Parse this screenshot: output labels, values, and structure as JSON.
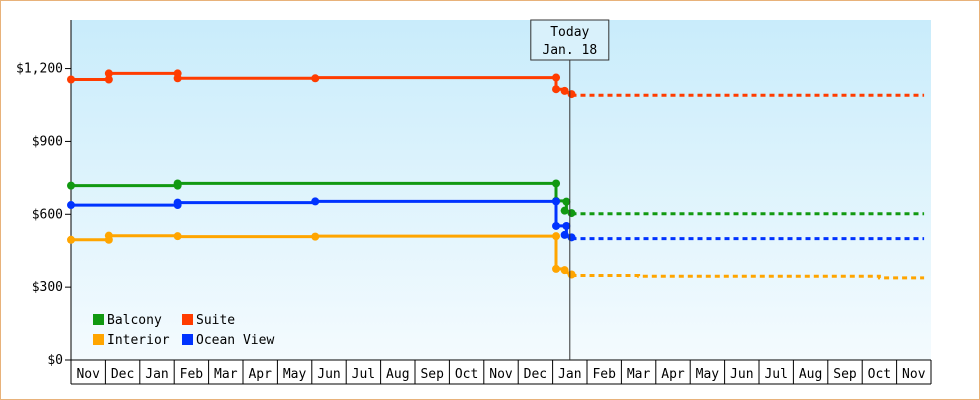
{
  "chart_data": {
    "type": "line",
    "title": "",
    "xlabel": "",
    "ylabel": "",
    "ylim": [
      0,
      1400
    ],
    "y_ticks": [
      {
        "value": 0,
        "label": "$0"
      },
      {
        "value": 300,
        "label": "$300"
      },
      {
        "value": 600,
        "label": "$600"
      },
      {
        "value": 900,
        "label": "$900"
      },
      {
        "value": 1200,
        "label": "$1,200"
      }
    ],
    "x_labels": [
      "Nov",
      "Dec",
      "Jan",
      "Feb",
      "Mar",
      "Apr",
      "May",
      "Jun",
      "Jul",
      "Aug",
      "Sep",
      "Oct",
      "Nov",
      "Dec",
      "Jan",
      "Feb",
      "Mar",
      "Apr",
      "May",
      "Jun",
      "Jul",
      "Aug",
      "Sep",
      "Oct",
      "Nov"
    ],
    "today": {
      "line1": "Today",
      "line2": "Jan. 18",
      "month_position": 14.5
    },
    "grid": false,
    "legend_position": "bottom-left",
    "series": [
      {
        "name": "Suite",
        "color": "#ff3c00",
        "points": [
          [
            0,
            1155
          ],
          [
            1.1,
            1155
          ],
          [
            1.1,
            1180
          ],
          [
            3.1,
            1180
          ],
          [
            3.1,
            1160
          ],
          [
            7.1,
            1160
          ],
          [
            7.1,
            1163
          ],
          [
            14.1,
            1163
          ],
          [
            14.1,
            1115
          ],
          [
            14.4,
            1115
          ],
          [
            14.4,
            1105
          ],
          [
            14.55,
            1095
          ]
        ],
        "markers": [
          [
            0,
            1155
          ],
          [
            1.1,
            1155
          ],
          [
            1.1,
            1180
          ],
          [
            3.1,
            1180
          ],
          [
            3.1,
            1160
          ],
          [
            7.1,
            1160
          ],
          [
            14.1,
            1163
          ],
          [
            14.1,
            1115
          ],
          [
            14.35,
            1108
          ],
          [
            14.55,
            1095
          ]
        ],
        "forecast": [
          [
            14.55,
            1090
          ],
          [
            24.8,
            1090
          ]
        ]
      },
      {
        "name": "Balcony",
        "color": "#119911",
        "points": [
          [
            0,
            718
          ],
          [
            3.1,
            718
          ],
          [
            3.1,
            727
          ],
          [
            14.1,
            727
          ],
          [
            14.1,
            655
          ],
          [
            14.4,
            655
          ],
          [
            14.4,
            615
          ],
          [
            14.55,
            605
          ]
        ],
        "markers": [
          [
            0,
            718
          ],
          [
            3.1,
            718
          ],
          [
            3.1,
            727
          ],
          [
            14.1,
            727
          ],
          [
            14.1,
            655
          ],
          [
            14.4,
            652
          ],
          [
            14.35,
            615
          ],
          [
            14.55,
            605
          ]
        ],
        "forecast": [
          [
            14.55,
            602
          ],
          [
            24.8,
            602
          ]
        ]
      },
      {
        "name": "Ocean View",
        "color": "#0033ff",
        "points": [
          [
            0,
            638
          ],
          [
            3.1,
            638
          ],
          [
            3.1,
            648
          ],
          [
            7.1,
            648
          ],
          [
            7.1,
            653
          ],
          [
            14.1,
            653
          ],
          [
            14.1,
            552
          ],
          [
            14.4,
            552
          ],
          [
            14.4,
            515
          ],
          [
            14.55,
            505
          ]
        ],
        "markers": [
          [
            0,
            638
          ],
          [
            3.1,
            638
          ],
          [
            3.1,
            648
          ],
          [
            7.1,
            653
          ],
          [
            14.1,
            653
          ],
          [
            14.1,
            552
          ],
          [
            14.4,
            552
          ],
          [
            14.35,
            515
          ],
          [
            14.55,
            505
          ]
        ],
        "forecast": [
          [
            14.55,
            500
          ],
          [
            24.8,
            500
          ]
        ]
      },
      {
        "name": "Interior",
        "color": "#ffa500",
        "points": [
          [
            0,
            495
          ],
          [
            1.1,
            495
          ],
          [
            1.1,
            512
          ],
          [
            3.1,
            512
          ],
          [
            3.1,
            508
          ],
          [
            7.1,
            508
          ],
          [
            7.1,
            510
          ],
          [
            14.1,
            510
          ],
          [
            14.1,
            375
          ],
          [
            14.4,
            375
          ],
          [
            14.4,
            362
          ],
          [
            14.55,
            352
          ]
        ],
        "markers": [
          [
            0,
            495
          ],
          [
            1.1,
            495
          ],
          [
            1.1,
            512
          ],
          [
            3.1,
            510
          ],
          [
            7.1,
            508
          ],
          [
            14.1,
            510
          ],
          [
            14.1,
            375
          ],
          [
            14.35,
            370
          ],
          [
            14.55,
            352
          ]
        ],
        "forecast": [
          [
            14.55,
            348
          ],
          [
            16.5,
            348
          ],
          [
            16.5,
            345
          ],
          [
            23.5,
            345
          ],
          [
            23.5,
            338
          ],
          [
            24.8,
            338
          ]
        ]
      }
    ],
    "legend": [
      {
        "label": "Balcony",
        "color": "#119911"
      },
      {
        "label": "Suite",
        "color": "#ff3c00"
      },
      {
        "label": "Interior",
        "color": "#ffa500"
      },
      {
        "label": "Ocean View",
        "color": "#0033ff"
      }
    ]
  }
}
